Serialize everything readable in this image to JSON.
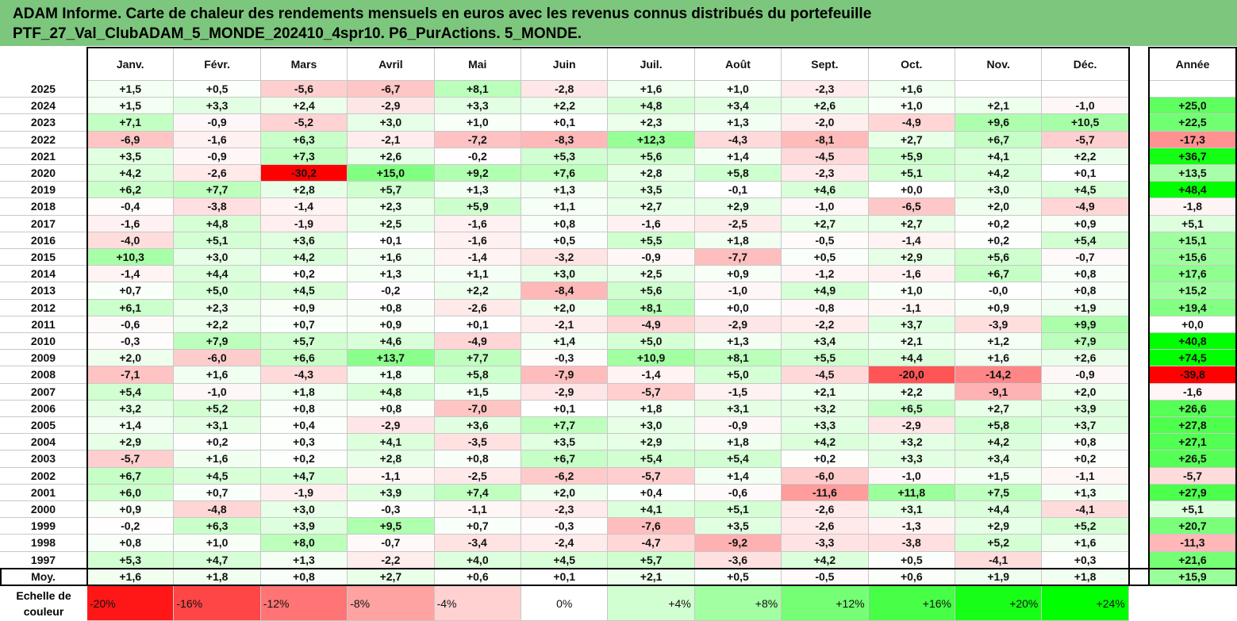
{
  "title": {
    "line1": "ADAM Informe. Carte de chaleur des rendements mensuels en euros avec les revenus connus distribués du portefeuille",
    "line2": "PTF_27_Val_ClubADAM_5_MONDE_202410_4spr10. P6_PurActions. 5_MONDE."
  },
  "chart_data": {
    "type": "heatmap",
    "columns": [
      "Janv.",
      "Févr.",
      "Mars",
      "Avril",
      "Mai",
      "Juin",
      "Juil.",
      "Août",
      "Sept.",
      "Oct.",
      "Nov.",
      "Déc."
    ],
    "year_column": "Année",
    "rows": [
      {
        "label": "2025",
        "values": [
          "+1,5",
          "+0,5",
          "-5,6",
          "-6,7",
          "+8,1",
          "-2,8",
          "+1,6",
          "+1,0",
          "-2,3",
          "+1,6",
          "",
          ""
        ],
        "year": ""
      },
      {
        "label": "2024",
        "values": [
          "+1,5",
          "+3,3",
          "+2,4",
          "-2,9",
          "+3,3",
          "+2,2",
          "+4,8",
          "+3,4",
          "+2,6",
          "+1,0",
          "+2,1",
          "-1,0"
        ],
        "year": "+25,0"
      },
      {
        "label": "2023",
        "values": [
          "+7,1",
          "-0,9",
          "-5,2",
          "+3,0",
          "+1,0",
          "+0,1",
          "+2,3",
          "+1,3",
          "-2,0",
          "-4,9",
          "+9,6",
          "+10,5"
        ],
        "year": "+22,5"
      },
      {
        "label": "2022",
        "values": [
          "-6,9",
          "-1,6",
          "+6,3",
          "-2,1",
          "-7,2",
          "-8,3",
          "+12,3",
          "-4,3",
          "-8,1",
          "+2,7",
          "+6,7",
          "-5,7"
        ],
        "year": "-17,3"
      },
      {
        "label": "2021",
        "values": [
          "+3,5",
          "-0,9",
          "+7,3",
          "+2,6",
          "-0,2",
          "+5,3",
          "+5,6",
          "+1,4",
          "-4,5",
          "+5,9",
          "+4,1",
          "+2,2"
        ],
        "year": "+36,7"
      },
      {
        "label": "2020",
        "values": [
          "+4,2",
          "-2,6",
          "-30,2",
          "+15,0",
          "+9,2",
          "+7,6",
          "+2,8",
          "+5,8",
          "-2,3",
          "+5,1",
          "+4,2",
          "+0,1"
        ],
        "year": "+13,5"
      },
      {
        "label": "2019",
        "values": [
          "+6,2",
          "+7,7",
          "+2,8",
          "+5,7",
          "+1,3",
          "+1,3",
          "+3,5",
          "-0,1",
          "+4,6",
          "+0,0",
          "+3,0",
          "+4,5"
        ],
        "year": "+48,4"
      },
      {
        "label": "2018",
        "values": [
          "-0,4",
          "-3,8",
          "-1,4",
          "+2,3",
          "+5,9",
          "+1,1",
          "+2,7",
          "+2,9",
          "-1,0",
          "-6,5",
          "+2,0",
          "-4,9"
        ],
        "year": "-1,8"
      },
      {
        "label": "2017",
        "values": [
          "-1,6",
          "+4,8",
          "-1,9",
          "+2,5",
          "-1,6",
          "+0,8",
          "-1,6",
          "-2,5",
          "+2,7",
          "+2,7",
          "+0,2",
          "+0,9"
        ],
        "year": "+5,1"
      },
      {
        "label": "2016",
        "values": [
          "-4,0",
          "+5,1",
          "+3,6",
          "+0,1",
          "-1,6",
          "+0,5",
          "+5,5",
          "+1,8",
          "-0,5",
          "-1,4",
          "+0,2",
          "+5,4"
        ],
        "year": "+15,1"
      },
      {
        "label": "2015",
        "values": [
          "+10,3",
          "+3,0",
          "+4,2",
          "+1,6",
          "-1,4",
          "-3,2",
          "-0,9",
          "-7,7",
          "+0,5",
          "+2,9",
          "+5,6",
          "-0,7"
        ],
        "year": "+15,6"
      },
      {
        "label": "2014",
        "values": [
          "-1,4",
          "+4,4",
          "+0,2",
          "+1,3",
          "+1,1",
          "+3,0",
          "+2,5",
          "+0,9",
          "-1,2",
          "-1,6",
          "+6,7",
          "+0,8"
        ],
        "year": "+17,6"
      },
      {
        "label": "2013",
        "values": [
          "+0,7",
          "+5,0",
          "+4,5",
          "-0,2",
          "+2,2",
          "-8,4",
          "+5,6",
          "-1,0",
          "+4,9",
          "+1,0",
          "-0,0",
          "+0,8"
        ],
        "year": "+15,2"
      },
      {
        "label": "2012",
        "values": [
          "+6,1",
          "+2,3",
          "+0,9",
          "+0,8",
          "-2,6",
          "+2,0",
          "+8,1",
          "+0,0",
          "-0,8",
          "-1,1",
          "+0,9",
          "+1,9"
        ],
        "year": "+19,4"
      },
      {
        "label": "2011",
        "values": [
          "-0,6",
          "+2,2",
          "+0,7",
          "+0,9",
          "+0,1",
          "-2,1",
          "-4,9",
          "-2,9",
          "-2,2",
          "+3,7",
          "-3,9",
          "+9,9"
        ],
        "year": "+0,0"
      },
      {
        "label": "2010",
        "values": [
          "-0,3",
          "+7,9",
          "+5,7",
          "+4,6",
          "-4,9",
          "+1,4",
          "+5,0",
          "+1,3",
          "+3,4",
          "+2,1",
          "+1,2",
          "+7,9"
        ],
        "year": "+40,8"
      },
      {
        "label": "2009",
        "values": [
          "+2,0",
          "-6,0",
          "+6,6",
          "+13,7",
          "+7,7",
          "-0,3",
          "+10,9",
          "+8,1",
          "+5,5",
          "+4,4",
          "+1,6",
          "+2,6"
        ],
        "year": "+74,5"
      },
      {
        "label": "2008",
        "values": [
          "-7,1",
          "+1,6",
          "-4,3",
          "+1,8",
          "+5,8",
          "-7,9",
          "-1,4",
          "+5,0",
          "-4,5",
          "-20,0",
          "-14,2",
          "-0,9"
        ],
        "year": "-39,8"
      },
      {
        "label": "2007",
        "values": [
          "+5,4",
          "-1,0",
          "+1,8",
          "+4,8",
          "+1,5",
          "-2,9",
          "-5,7",
          "-1,5",
          "+2,1",
          "+2,2",
          "-9,1",
          "+2,0"
        ],
        "year": "-1,6"
      },
      {
        "label": "2006",
        "values": [
          "+3,2",
          "+5,2",
          "+0,8",
          "+0,8",
          "-7,0",
          "+0,1",
          "+1,8",
          "+3,1",
          "+3,2",
          "+6,5",
          "+2,7",
          "+3,9"
        ],
        "year": "+26,6"
      },
      {
        "label": "2005",
        "values": [
          "+1,4",
          "+3,1",
          "+0,4",
          "-2,9",
          "+3,6",
          "+7,7",
          "+3,0",
          "-0,9",
          "+3,3",
          "-2,9",
          "+5,8",
          "+3,7"
        ],
        "year": "+27,8"
      },
      {
        "label": "2004",
        "values": [
          "+2,9",
          "+0,2",
          "+0,3",
          "+4,1",
          "-3,5",
          "+3,5",
          "+2,9",
          "+1,8",
          "+4,2",
          "+3,2",
          "+4,2",
          "+0,8"
        ],
        "year": "+27,1"
      },
      {
        "label": "2003",
        "values": [
          "-5,7",
          "+1,6",
          "+0,2",
          "+2,8",
          "+0,8",
          "+6,7",
          "+5,4",
          "+5,4",
          "+0,2",
          "+3,3",
          "+3,4",
          "+0,2"
        ],
        "year": "+26,5"
      },
      {
        "label": "2002",
        "values": [
          "+6,7",
          "+4,5",
          "+4,7",
          "-1,1",
          "-2,5",
          "-6,2",
          "-5,7",
          "+1,4",
          "-6,0",
          "-1,0",
          "+1,5",
          "-1,1"
        ],
        "year": "-5,7"
      },
      {
        "label": "2001",
        "values": [
          "+6,0",
          "+0,7",
          "-1,9",
          "+3,9",
          "+7,4",
          "+2,0",
          "+0,4",
          "-0,6",
          "-11,6",
          "+11,8",
          "+7,5",
          "+1,3"
        ],
        "year": "+27,9"
      },
      {
        "label": "2000",
        "values": [
          "+0,9",
          "-4,8",
          "+3,0",
          "-0,3",
          "-1,1",
          "-2,3",
          "+4,1",
          "+5,1",
          "-2,6",
          "+3,1",
          "+4,4",
          "-4,1"
        ],
        "year": "+5,1"
      },
      {
        "label": "1999",
        "values": [
          "-0,2",
          "+6,3",
          "+3,9",
          "+9,5",
          "+0,7",
          "-0,3",
          "-7,6",
          "+3,5",
          "-2,6",
          "-1,3",
          "+2,9",
          "+5,2"
        ],
        "year": "+20,7"
      },
      {
        "label": "1998",
        "values": [
          "+0,8",
          "+1,0",
          "+8,0",
          "-0,7",
          "-3,4",
          "-2,4",
          "-4,7",
          "-9,2",
          "-3,3",
          "-3,8",
          "+5,2",
          "+1,6"
        ],
        "year": "-11,3"
      },
      {
        "label": "1997",
        "values": [
          "+5,3",
          "+4,7",
          "+1,3",
          "-2,2",
          "+4,0",
          "+4,5",
          "+5,7",
          "-3,6",
          "+4,2",
          "+0,5",
          "-4,1",
          "+0,3"
        ],
        "year": "+21,6"
      }
    ],
    "average_row": {
      "label": "Moy.",
      "values": [
        "+1,6",
        "+1,8",
        "+0,8",
        "+2,7",
        "+0,6",
        "+0,1",
        "+2,1",
        "+0,5",
        "-0,5",
        "+0,6",
        "+1,9",
        "+1,8"
      ],
      "year": "+15,9"
    },
    "scale": {
      "label_line1": "Echelle de",
      "label_line2": "couleur",
      "steps": [
        "-20%",
        "-16%",
        "-12%",
        "-8%",
        "-4%",
        "0%",
        "+4%",
        "+8%",
        "+12%",
        "+16%",
        "+20%",
        "+24%"
      ]
    },
    "colors": {
      "title_bg": "#7dc67d",
      "negative_max": "#ff0000",
      "neutral": "#ffffff",
      "positive_max": "#00ff00"
    }
  }
}
